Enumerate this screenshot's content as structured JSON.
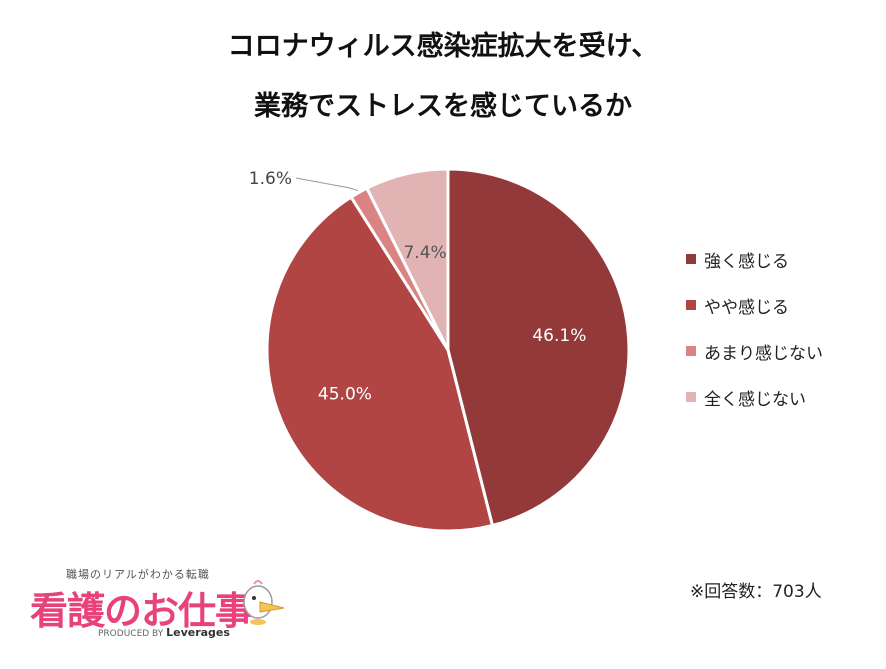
{
  "title_line1": "コロナウィルス感染症拡大を受け、",
  "title_line2": "業務でストレスを感じているか",
  "note": "※回答数：703人",
  "logo": {
    "tagline": "職場のリアルがわかる転職",
    "name": "看護のお仕事",
    "produced_by": "PRODUCED BY",
    "brand": "Leverages"
  },
  "chart_data": {
    "type": "pie",
    "title": "コロナウィルス感染症拡大を受け、業務でストレスを感じているか",
    "slices": [
      {
        "label": "強く感じる",
        "value": 46.1,
        "display": "46.1%",
        "color": "#93393a"
      },
      {
        "label": "やや感じる",
        "value": 45.0,
        "display": "45.0%",
        "color": "#b04544"
      },
      {
        "label": "あまり感じない",
        "value": 1.6,
        "display": "1.6%",
        "color": "#d98483"
      },
      {
        "label": "全く感じない",
        "value": 7.4,
        "display": "7.4%",
        "color": "#e1b3b3"
      }
    ],
    "start": "12 o'clock",
    "direction": "clockwise",
    "legend_position": "right"
  }
}
